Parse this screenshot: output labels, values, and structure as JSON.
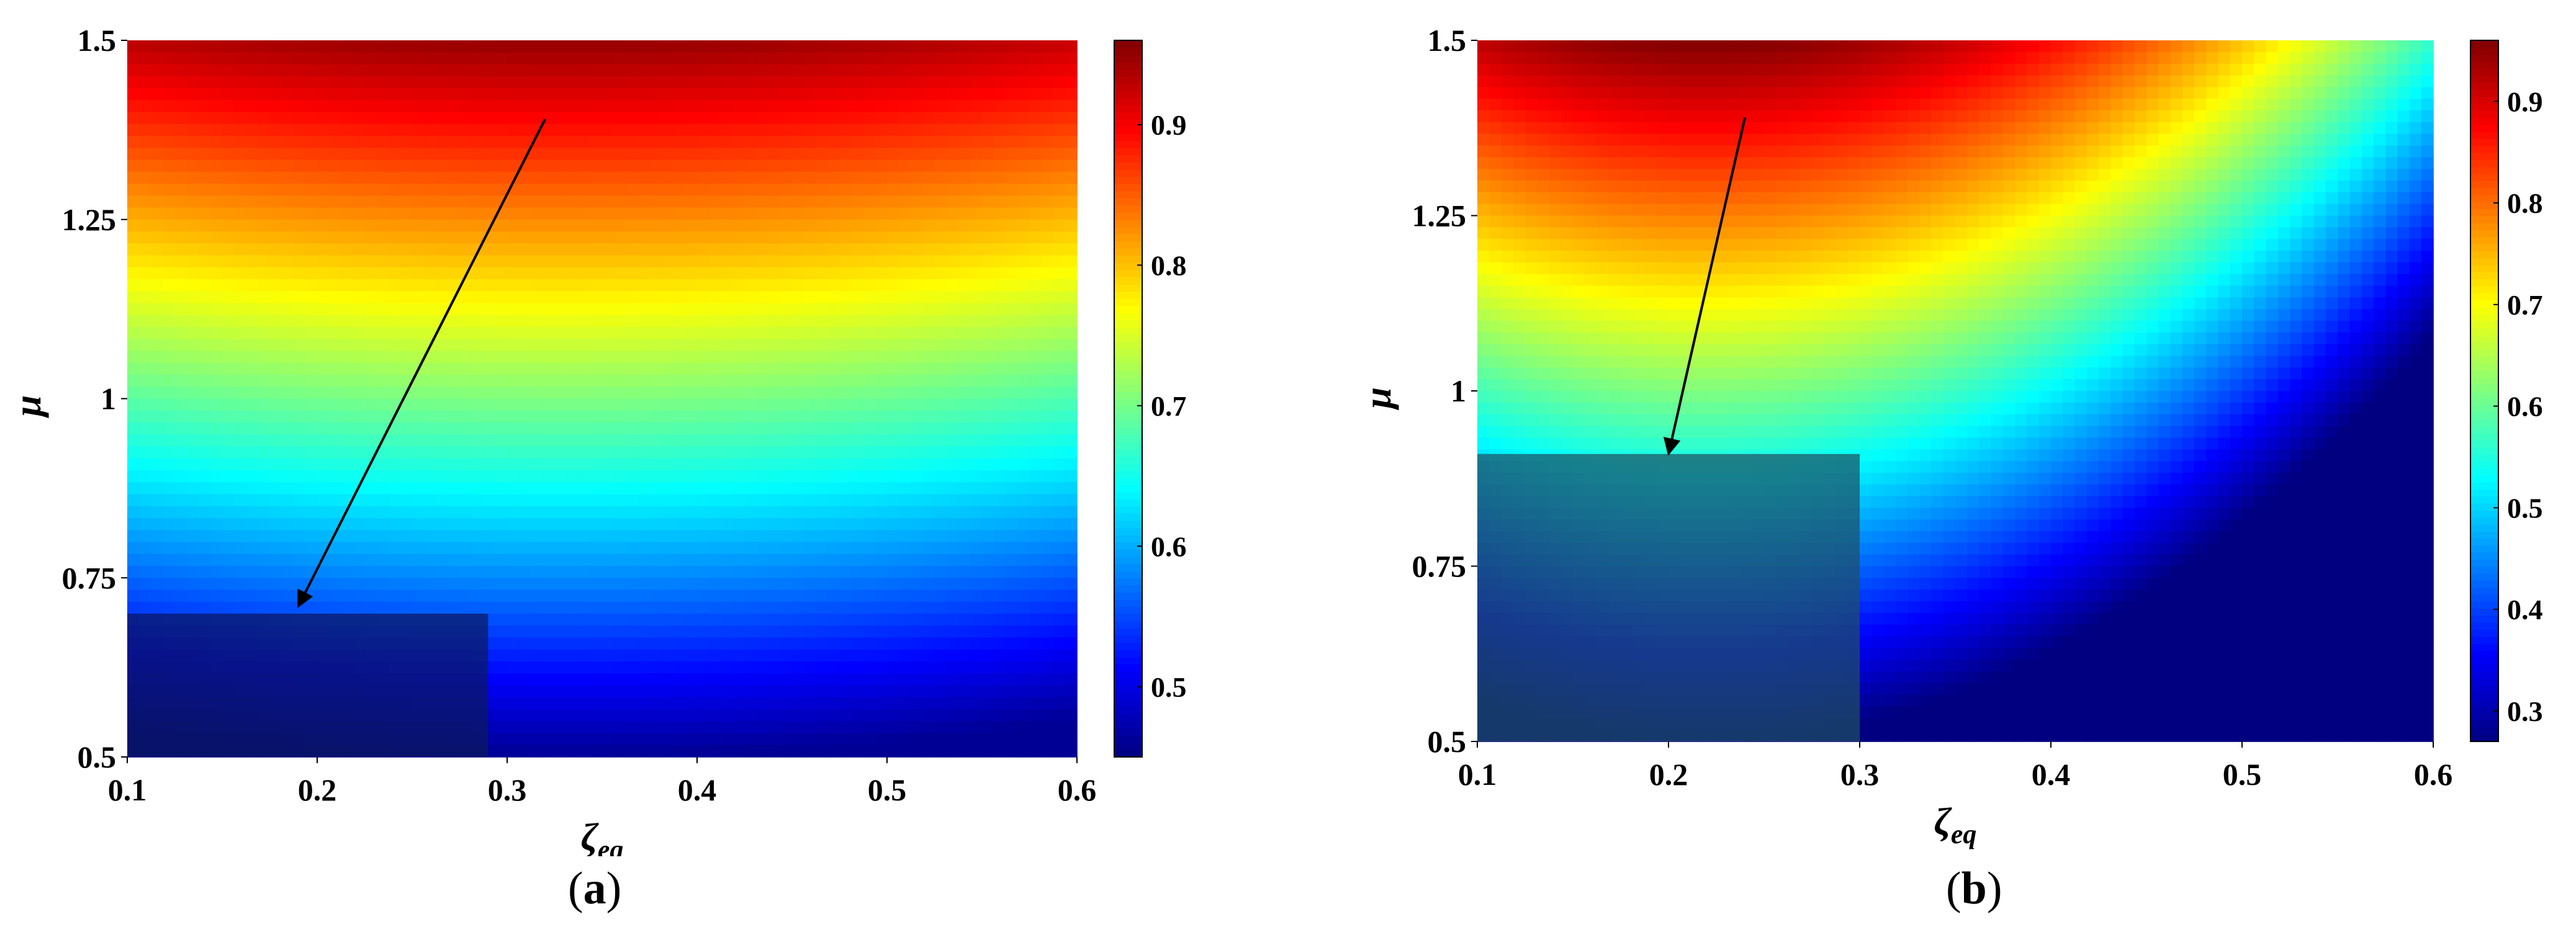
{
  "chart_data": [
    {
      "type": "heatmap",
      "panel": "a",
      "caption_open": "(",
      "caption_letter": "a",
      "caption_close": ")",
      "xlabel": "ζ",
      "xlabel_sub": "eq",
      "ylabel": "μ",
      "xlim": [
        0.1,
        0.6
      ],
      "ylim": [
        0.5,
        1.5
      ],
      "xticks": [
        "0.1",
        "0.2",
        "0.3",
        "0.4",
        "0.5",
        "0.6"
      ],
      "yticks": [
        "0.5",
        "0.75",
        "1",
        "1.25",
        "1.5"
      ],
      "colorbar": {
        "min": 0.45,
        "max": 0.96,
        "ticks": [
          "0.5",
          "0.6",
          "0.7",
          "0.8",
          "0.9"
        ]
      },
      "field_model": {
        "value_at_bottom": 0.46,
        "value_at_top": 0.95,
        "best_zeta": 0.33,
        "curvature": 0.35
      },
      "highlight_region": {
        "x": [
          0.1,
          0.29
        ],
        "y": [
          0.5,
          0.7
        ],
        "color": "#0b1a5a",
        "opacity": 0.7
      },
      "arrow": {
        "from": [
          0.32,
          1.39
        ],
        "to": [
          0.19,
          0.71
        ]
      }
    },
    {
      "type": "heatmap",
      "panel": "b",
      "caption_open": "(",
      "caption_letter": "b",
      "caption_close": ")",
      "xlabel": "ζ",
      "xlabel_sub": "eq",
      "ylabel": "μ",
      "xlim": [
        0.1,
        0.6
      ],
      "ylim": [
        0.5,
        1.5
      ],
      "xticks": [
        "0.1",
        "0.2",
        "0.3",
        "0.4",
        "0.5",
        "0.6"
      ],
      "yticks": [
        "0.5",
        "0.75",
        "1",
        "1.25",
        "1.5"
      ],
      "colorbar": {
        "min": 0.27,
        "max": 0.96,
        "ticks": [
          "0.3",
          "0.4",
          "0.5",
          "0.6",
          "0.7",
          "0.8",
          "0.9"
        ]
      },
      "field_model": {
        "value_at_bottom": 0.27,
        "value_at_top": 0.96,
        "best_zeta": 0.22,
        "curvature": 1.25
      },
      "highlight_region": {
        "x": [
          0.1,
          0.3
        ],
        "y": [
          0.5,
          0.91
        ],
        "color": "#1f4f63",
        "opacity": 0.72
      },
      "arrow": {
        "from": [
          0.24,
          1.39
        ],
        "to": [
          0.2,
          0.91
        ]
      }
    }
  ]
}
